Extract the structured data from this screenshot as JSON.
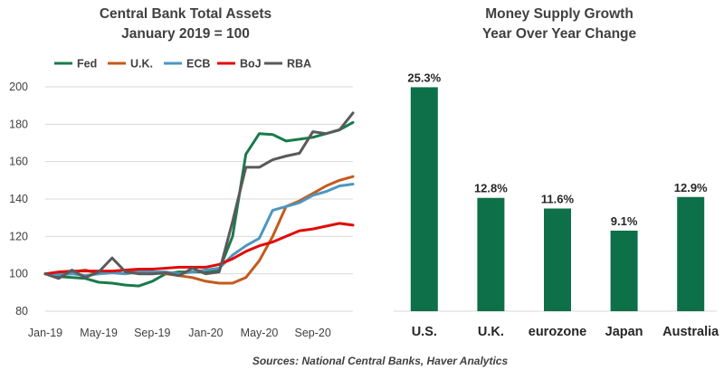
{
  "chart_data": [
    {
      "type": "line",
      "title": "Central Bank Total Assets",
      "subtitle": "January 2019 = 100",
      "xlabel": "",
      "ylabel": "",
      "ylim": [
        80,
        200
      ],
      "yticks": [
        "80",
        "100",
        "120",
        "140",
        "160",
        "180",
        "200"
      ],
      "xticks": [
        "Jan-19",
        "May-19",
        "Sep-19",
        "Jan-20",
        "May-20",
        "Sep-20"
      ],
      "grid": true,
      "legend": "top",
      "x": [
        "Jan-19",
        "Feb-19",
        "Mar-19",
        "Apr-19",
        "May-19",
        "Jun-19",
        "Jul-19",
        "Aug-19",
        "Sep-19",
        "Oct-19",
        "Nov-19",
        "Dec-19",
        "Jan-20",
        "Feb-20",
        "Mar-20",
        "Apr-20",
        "May-20",
        "Jun-20",
        "Jul-20",
        "Aug-20",
        "Sep-20",
        "Oct-20",
        "Nov-20",
        "Dec-20"
      ],
      "series": [
        {
          "name": "Fed",
          "color": "#1a7a4c",
          "values": [
            100,
            98.5,
            98,
            97.5,
            95.5,
            95,
            94,
            93.5,
            96,
            100,
            101,
            101,
            101,
            102,
            120,
            164,
            175,
            174.5,
            171,
            172,
            173,
            175,
            177,
            181
          ]
        },
        {
          "name": "U.K.",
          "color": "#c45a1c",
          "values": [
            100,
            100.5,
            101,
            102,
            100,
            101,
            102,
            101,
            101,
            100,
            99,
            98,
            96,
            95,
            95,
            98,
            107,
            120,
            136,
            139,
            143,
            147,
            150,
            152
          ]
        },
        {
          "name": "ECB",
          "color": "#4c97bf",
          "values": [
            100,
            99.5,
            100,
            99,
            100,
            100.5,
            100,
            101,
            101,
            101,
            100,
            101,
            102,
            103,
            110,
            115,
            119,
            134,
            136,
            138,
            142,
            144,
            147,
            148
          ]
        },
        {
          "name": "BoJ",
          "color": "#e00b0b",
          "values": [
            100,
            101,
            101.5,
            101.5,
            101.5,
            101.5,
            102,
            102.5,
            102.5,
            103,
            103.5,
            103.5,
            103.5,
            105,
            108,
            112,
            115,
            117,
            120,
            123,
            124,
            125.5,
            127,
            126
          ]
        },
        {
          "name": "RBA",
          "color": "#5a5a5a",
          "values": [
            100,
            97.5,
            102,
            98,
            101,
            108.5,
            101,
            100,
            100,
            100.5,
            99,
            103,
            100,
            101,
            128,
            157,
            157,
            161,
            163,
            164.5,
            176,
            175,
            177,
            186
          ]
        }
      ]
    },
    {
      "type": "bar",
      "title": "Money Supply Growth",
      "subtitle": "Year Over Year Change",
      "categories": [
        "U.S.",
        "U.K.",
        "eurozone",
        "Japan",
        "Australia"
      ],
      "values": [
        25.3,
        12.8,
        11.6,
        9.1,
        12.9
      ],
      "labels": [
        "25.3%",
        "12.8%",
        "11.6%",
        "9.1%",
        "12.9%"
      ],
      "unit": "%",
      "color": "#0e7048",
      "ylim": [
        0,
        28
      ],
      "grid": false
    }
  ],
  "source": "Sources: National Central Banks, Haver Analytics"
}
